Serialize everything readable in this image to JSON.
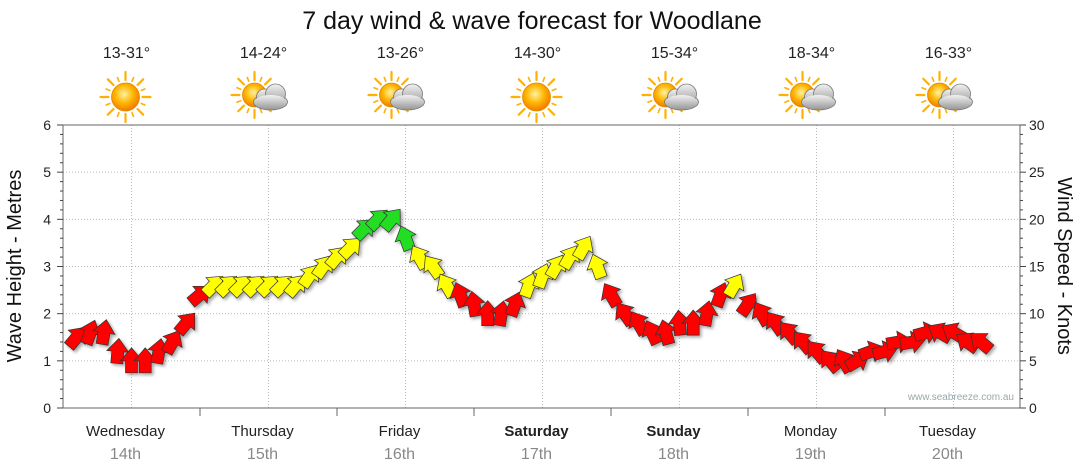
{
  "chart_data": {
    "type": "line",
    "title": "7 day wind & wave forecast for Woodlane",
    "ylabel_left": "Wave Height - Metres",
    "ylabel_right": "Wind Speed - Knots",
    "ylim_left": [
      0,
      6
    ],
    "ylim_right": [
      0,
      30
    ],
    "yticks_left": [
      "0",
      "1",
      "2",
      "3",
      "4",
      "5",
      "6"
    ],
    "yticks_right": [
      "0",
      "5",
      "10",
      "15",
      "20",
      "25",
      "30"
    ],
    "grid": true,
    "watermark": "www.seabreeze.com.au",
    "days": [
      {
        "name": "Wednesday",
        "date": "14th",
        "temp": "13-31°",
        "icon": "sun-icon",
        "bold": false
      },
      {
        "name": "Thursday",
        "date": "15th",
        "temp": "14-24°",
        "icon": "sun-cloud-icon",
        "bold": false
      },
      {
        "name": "Friday",
        "date": "16th",
        "temp": "13-26°",
        "icon": "sun-cloud-icon",
        "bold": false
      },
      {
        "name": "Saturday",
        "date": "17th",
        "temp": "14-30°",
        "icon": "sun-icon",
        "bold": true
      },
      {
        "name": "Sunday",
        "date": "18th",
        "temp": "15-34°",
        "icon": "sun-cloud-icon",
        "bold": true
      },
      {
        "name": "Monday",
        "date": "19th",
        "temp": "18-34°",
        "icon": "sun-cloud-icon",
        "bold": false
      },
      {
        "name": "Tuesday",
        "date": "20th",
        "temp": "16-33°",
        "icon": "sun-cloud-icon",
        "bold": false
      }
    ],
    "wind_color_scale": {
      "low": "#ff0000",
      "mid": "#ffff00",
      "high": "#22dd22"
    },
    "series": [
      {
        "x": [
          0.0,
          0.1,
          0.2,
          0.3,
          0.4,
          0.5,
          0.6,
          0.7,
          0.8,
          0.9,
          1.0,
          1.1,
          1.2,
          1.3,
          1.4,
          1.5,
          1.6,
          1.7,
          1.8,
          1.9,
          2.0,
          2.1,
          2.2,
          2.3,
          2.4,
          2.5,
          2.6,
          2.7,
          2.8,
          2.9,
          3.0,
          3.1,
          3.2,
          3.3,
          3.4,
          3.5,
          3.6,
          3.7,
          3.8,
          3.9,
          4.0,
          4.1,
          4.2,
          4.3,
          4.4,
          4.5,
          4.6,
          4.7,
          4.8,
          4.9,
          5.0,
          5.1,
          5.2,
          5.3,
          5.4,
          5.5,
          5.6,
          5.7,
          5.8,
          5.9,
          6.0,
          6.1,
          6.2,
          6.3,
          6.4,
          6.5,
          6.6,
          6.7
        ],
        "wind_knots": [
          7,
          7.5,
          8,
          8,
          6,
          5,
          5,
          6,
          7,
          9,
          12,
          13,
          13,
          13,
          13,
          13,
          13,
          13,
          14,
          15,
          16,
          17,
          19,
          20,
          20,
          18,
          16,
          15,
          13,
          12,
          11,
          10,
          10,
          11,
          13,
          14,
          15,
          16,
          17,
          15,
          12,
          10,
          9,
          8,
          8,
          9,
          9,
          10,
          12,
          13,
          11,
          10,
          9,
          8,
          7,
          6,
          5,
          5,
          5,
          6,
          6,
          7,
          7,
          8,
          8,
          8,
          7,
          7
        ],
        "wind_dir_deg": [
          60,
          40,
          20,
          10,
          5,
          0,
          0,
          10,
          30,
          40,
          50,
          45,
          45,
          45,
          45,
          45,
          45,
          40,
          35,
          35,
          40,
          45,
          45,
          45,
          40,
          -20,
          -30,
          -35,
          -30,
          -20,
          -10,
          0,
          10,
          20,
          20,
          20,
          30,
          30,
          30,
          -20,
          -30,
          -35,
          -30,
          -25,
          -15,
          -5,
          0,
          10,
          20,
          30,
          35,
          -30,
          -35,
          -40,
          -40,
          -40,
          -40,
          -30,
          60,
          70,
          75,
          80,
          80,
          75,
          -60,
          -60,
          -55,
          -50
        ]
      }
    ]
  }
}
